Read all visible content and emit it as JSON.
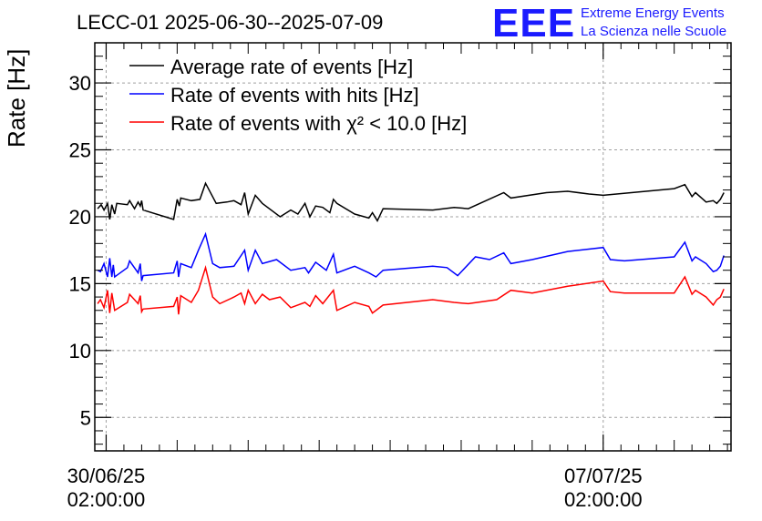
{
  "header": {
    "title": "LECC-01 2025-06-30--2025-07-09",
    "logo_text": "EEE",
    "logo_line1": "Extreme Energy Events",
    "logo_line2": "La Scienza nelle Scuole"
  },
  "chart_data": {
    "type": "line",
    "title": "LECC-01 2025-06-30--2025-07-09",
    "ylabel": "Rate [Hz]",
    "xlabel": "",
    "ylim": [
      2.5,
      33
    ],
    "xlim": [
      -0.16,
      8.8
    ],
    "x_unit": "days since 30/06/25 02:00:00",
    "yticks": [
      5,
      10,
      15,
      20,
      25,
      30
    ],
    "xticks": [
      {
        "value": 0,
        "line1": "30/06/25",
        "line2": "02:00:00"
      },
      {
        "value": 7,
        "line1": "07/07/25",
        "line2": "02:00:00"
      }
    ],
    "grid": true,
    "legend_position": "top-left",
    "series": [
      {
        "name": "Average rate of events [Hz]",
        "color": "#000000",
        "points": [
          [
            -0.12,
            20.6
          ],
          [
            -0.07,
            20.9
          ],
          [
            -0.03,
            20.5
          ],
          [
            0.02,
            21.0
          ],
          [
            0.05,
            19.8
          ],
          [
            0.08,
            20.9
          ],
          [
            0.12,
            20.2
          ],
          [
            0.15,
            21.0
          ],
          [
            0.3,
            20.9
          ],
          [
            0.33,
            21.2
          ],
          [
            0.4,
            20.6
          ],
          [
            0.45,
            21.1
          ],
          [
            0.48,
            20.8
          ],
          [
            0.5,
            21.2
          ],
          [
            0.52,
            20.5
          ],
          [
            0.95,
            19.8
          ],
          [
            1.0,
            21.3
          ],
          [
            1.03,
            20.8
          ],
          [
            1.05,
            21.4
          ],
          [
            1.2,
            21.2
          ],
          [
            1.32,
            21.3
          ],
          [
            1.4,
            22.5
          ],
          [
            1.55,
            21.0
          ],
          [
            1.7,
            21.1
          ],
          [
            1.8,
            21.2
          ],
          [
            1.9,
            20.9
          ],
          [
            1.95,
            21.8
          ],
          [
            2.0,
            20.2
          ],
          [
            2.1,
            21.6
          ],
          [
            2.2,
            21.0
          ],
          [
            2.45,
            20.0
          ],
          [
            2.6,
            20.5
          ],
          [
            2.7,
            20.2
          ],
          [
            2.8,
            21.0
          ],
          [
            2.87,
            20.0
          ],
          [
            2.95,
            20.8
          ],
          [
            3.05,
            20.7
          ],
          [
            3.15,
            20.3
          ],
          [
            3.2,
            21.3
          ],
          [
            3.25,
            21.0
          ],
          [
            3.5,
            20.2
          ],
          [
            3.7,
            19.9
          ],
          [
            3.75,
            20.3
          ],
          [
            3.82,
            19.7
          ],
          [
            3.9,
            20.6
          ],
          [
            4.6,
            20.5
          ],
          [
            4.9,
            20.7
          ],
          [
            5.1,
            20.6
          ],
          [
            5.6,
            21.8
          ],
          [
            5.7,
            21.4
          ],
          [
            6.2,
            21.8
          ],
          [
            6.5,
            21.9
          ],
          [
            6.8,
            21.7
          ],
          [
            7.0,
            21.6
          ],
          [
            8.0,
            22.1
          ],
          [
            8.15,
            22.4
          ],
          [
            8.25,
            21.5
          ],
          [
            8.3,
            21.8
          ],
          [
            8.45,
            21.1
          ],
          [
            8.55,
            21.2
          ],
          [
            8.6,
            21.0
          ],
          [
            8.65,
            21.3
          ],
          [
            8.7,
            21.8
          ]
        ]
      },
      {
        "name": "Rate of events with hits [Hz]",
        "color": "#0000ff",
        "points": [
          [
            -0.12,
            16.0
          ],
          [
            -0.08,
            15.9
          ],
          [
            -0.03,
            16.5
          ],
          [
            0.02,
            15.5
          ],
          [
            0.05,
            16.9
          ],
          [
            0.08,
            15.5
          ],
          [
            0.1,
            16.4
          ],
          [
            0.12,
            15.5
          ],
          [
            0.3,
            16.2
          ],
          [
            0.33,
            16.7
          ],
          [
            0.45,
            15.8
          ],
          [
            0.48,
            16.5
          ],
          [
            0.5,
            15.2
          ],
          [
            0.52,
            15.6
          ],
          [
            0.95,
            15.8
          ],
          [
            1.0,
            16.7
          ],
          [
            1.02,
            15.5
          ],
          [
            1.05,
            16.5
          ],
          [
            1.2,
            16.2
          ],
          [
            1.3,
            17.5
          ],
          [
            1.4,
            18.7
          ],
          [
            1.5,
            16.5
          ],
          [
            1.6,
            16.2
          ],
          [
            1.8,
            16.3
          ],
          [
            1.95,
            17.5
          ],
          [
            2.0,
            16.0
          ],
          [
            2.1,
            17.5
          ],
          [
            2.2,
            16.5
          ],
          [
            2.4,
            16.8
          ],
          [
            2.6,
            16.0
          ],
          [
            2.8,
            16.2
          ],
          [
            2.85,
            15.8
          ],
          [
            2.95,
            16.6
          ],
          [
            3.1,
            16.0
          ],
          [
            3.2,
            17.2
          ],
          [
            3.25,
            15.8
          ],
          [
            3.5,
            16.3
          ],
          [
            3.7,
            15.8
          ],
          [
            3.8,
            15.5
          ],
          [
            3.9,
            16.0
          ],
          [
            4.6,
            16.3
          ],
          [
            4.8,
            16.2
          ],
          [
            4.95,
            15.6
          ],
          [
            5.2,
            17.0
          ],
          [
            5.4,
            16.8
          ],
          [
            5.6,
            17.3
          ],
          [
            5.7,
            16.5
          ],
          [
            6.0,
            16.8
          ],
          [
            6.5,
            17.4
          ],
          [
            7.0,
            17.7
          ],
          [
            7.1,
            16.8
          ],
          [
            7.3,
            16.7
          ],
          [
            8.0,
            17.0
          ],
          [
            8.15,
            18.1
          ],
          [
            8.25,
            16.7
          ],
          [
            8.3,
            17.0
          ],
          [
            8.45,
            16.5
          ],
          [
            8.55,
            15.9
          ],
          [
            8.6,
            16.0
          ],
          [
            8.65,
            16.3
          ],
          [
            8.7,
            17.1
          ]
        ]
      },
      {
        "name": "Rate of events with χ² < 10.0 [Hz]",
        "color": "#ff0000",
        "points": [
          [
            -0.12,
            13.5
          ],
          [
            -0.08,
            13.8
          ],
          [
            -0.03,
            13.2
          ],
          [
            0.02,
            14.5
          ],
          [
            0.05,
            12.8
          ],
          [
            0.08,
            14.3
          ],
          [
            0.12,
            13.0
          ],
          [
            0.3,
            13.6
          ],
          [
            0.33,
            14.2
          ],
          [
            0.45,
            13.5
          ],
          [
            0.48,
            14.1
          ],
          [
            0.5,
            12.9
          ],
          [
            0.52,
            13.1
          ],
          [
            0.95,
            13.3
          ],
          [
            1.0,
            14.0
          ],
          [
            1.02,
            12.7
          ],
          [
            1.05,
            14.1
          ],
          [
            1.2,
            13.6
          ],
          [
            1.3,
            14.5
          ],
          [
            1.4,
            16.2
          ],
          [
            1.5,
            14.0
          ],
          [
            1.6,
            13.5
          ],
          [
            1.8,
            14.0
          ],
          [
            1.9,
            14.3
          ],
          [
            1.95,
            13.5
          ],
          [
            2.0,
            14.5
          ],
          [
            2.1,
            13.5
          ],
          [
            2.2,
            14.2
          ],
          [
            2.3,
            13.8
          ],
          [
            2.45,
            14.0
          ],
          [
            2.6,
            13.2
          ],
          [
            2.8,
            13.6
          ],
          [
            2.87,
            13.3
          ],
          [
            2.95,
            14.1
          ],
          [
            3.05,
            13.5
          ],
          [
            3.2,
            14.5
          ],
          [
            3.25,
            13.0
          ],
          [
            3.5,
            13.6
          ],
          [
            3.7,
            13.3
          ],
          [
            3.75,
            12.8
          ],
          [
            3.9,
            13.4
          ],
          [
            4.6,
            13.8
          ],
          [
            4.9,
            13.6
          ],
          [
            5.1,
            13.5
          ],
          [
            5.5,
            13.8
          ],
          [
            5.7,
            14.5
          ],
          [
            6.0,
            14.3
          ],
          [
            6.5,
            14.8
          ],
          [
            7.0,
            15.2
          ],
          [
            7.1,
            14.4
          ],
          [
            7.3,
            14.3
          ],
          [
            8.0,
            14.3
          ],
          [
            8.15,
            15.5
          ],
          [
            8.25,
            14.2
          ],
          [
            8.3,
            14.5
          ],
          [
            8.45,
            14.0
          ],
          [
            8.55,
            13.4
          ],
          [
            8.6,
            13.8
          ],
          [
            8.65,
            14.0
          ],
          [
            8.7,
            14.6
          ]
        ]
      }
    ]
  }
}
